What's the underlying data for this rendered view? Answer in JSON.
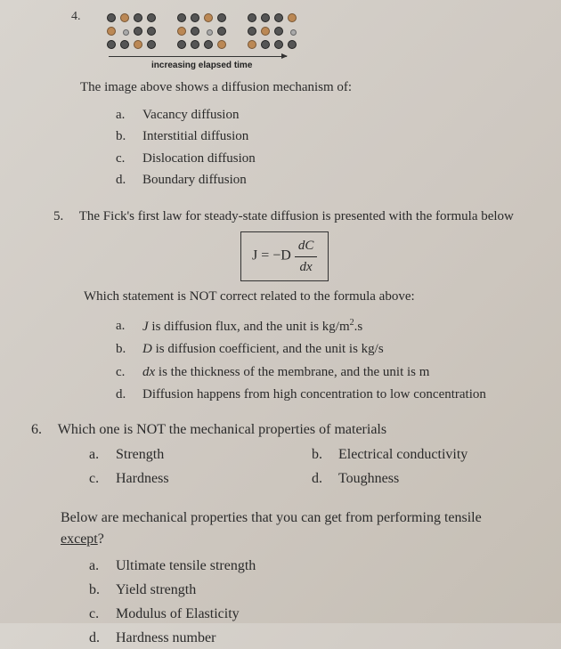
{
  "q4": {
    "number": "4.",
    "arrow_label": "increasing elapsed time",
    "stem": "The image above shows a diffusion mechanism of:",
    "options": {
      "a": "Vacancy diffusion",
      "b": "Interstitial diffusion",
      "c": "Dislocation diffusion",
      "d": "Boundary diffusion"
    },
    "diagram": {
      "rows": 3,
      "cols": 4,
      "atom_colors": {
        "host": "#555555",
        "impurity": "#bb8855",
        "vacancy_border": "#999999"
      },
      "panels": 3
    }
  },
  "q5": {
    "number": "5.",
    "stem": "The Fick's first law for steady-state diffusion is presented with the formula below",
    "formula": {
      "lhs": "J = −D",
      "num": "dC",
      "den": "dx"
    },
    "substem": "Which statement is NOT correct related to the formula above:",
    "options": {
      "a_pre": "J",
      "a_post": " is diffusion flux, and the unit is kg/m",
      "a_sup": "2",
      "a_tail": ".s",
      "b_pre": "D",
      "b_post": " is diffusion coefficient, and the unit is kg/s",
      "c_pre": "dx",
      "c_post": " is the thickness of the membrane, and the unit is m",
      "d": "Diffusion happens from high concentration to low concentration"
    }
  },
  "q6": {
    "number": "6.",
    "stem": "Which one is NOT the mechanical properties of materials",
    "options": {
      "a": "Strength",
      "b": "Electrical conductivity",
      "c": "Hardness",
      "d": "Toughness"
    }
  },
  "q7": {
    "stem_line1": "Below are mechanical properties that you can get from performing tensile",
    "stem_line2_u": "except",
    "stem_line2_tail": "?",
    "options": {
      "a": "Ultimate tensile strength",
      "b": "Yield strength",
      "c": "Modulus of Elasticity",
      "d": "Hardness number"
    }
  },
  "letters": {
    "a": "a.",
    "b": "b.",
    "c": "c.",
    "d": "d."
  }
}
